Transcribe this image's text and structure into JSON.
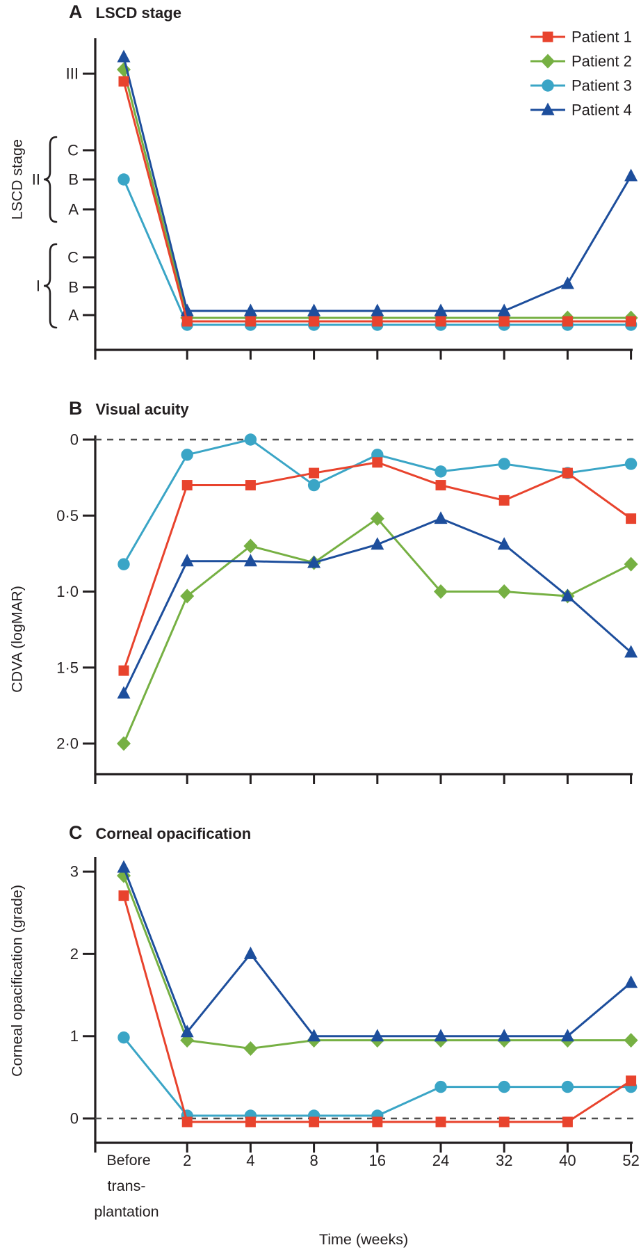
{
  "colors": {
    "axis": "#231f20",
    "text": "#231f20",
    "dashed_line": "#4d4d4d",
    "background": "#ffffff",
    "patient1": "#e8432d",
    "patient2": "#76b043",
    "patient3": "#3aa5c6",
    "patient4": "#1d4e9c"
  },
  "legend": {
    "items": [
      {
        "label": "Patient 1",
        "marker": "square",
        "color": "#e8432d"
      },
      {
        "label": "Patient 2",
        "marker": "diamond",
        "color": "#76b043"
      },
      {
        "label": "Patient 3",
        "marker": "circle",
        "color": "#3aa5c6"
      },
      {
        "label": "Patient 4",
        "marker": "triangle",
        "color": "#1d4e9c"
      }
    ]
  },
  "x_axis": {
    "tick_labels": [
      "2",
      "4",
      "8",
      "16",
      "24",
      "32",
      "40",
      "52"
    ],
    "first_category_lines": [
      "Before",
      "trans-",
      "plantation"
    ],
    "title": "Time (weeks)"
  },
  "chart_data": [
    {
      "type": "line",
      "panel_letter": "A",
      "title": "LSCD stage",
      "ylabel": "LSCD stage",
      "categories": [
        "Before transplantation",
        "2",
        "4",
        "8",
        "16",
        "24",
        "32",
        "40",
        "52"
      ],
      "y_axis": {
        "kind": "ordinal_stages",
        "ticks": [
          {
            "stage": "III",
            "label": "III"
          },
          {
            "stage": "IIC",
            "label": "C"
          },
          {
            "stage": "IIB",
            "label": "B"
          },
          {
            "stage": "IIA",
            "label": "A"
          },
          {
            "stage": "IC",
            "label": "C"
          },
          {
            "stage": "IB",
            "label": "B"
          },
          {
            "stage": "IA",
            "label": "A"
          }
        ],
        "group_braces": [
          {
            "label": "II",
            "stages": [
              "IIC",
              "IIB",
              "IIA"
            ]
          },
          {
            "label": "I",
            "stages": [
              "IC",
              "IB",
              "IA"
            ]
          }
        ]
      },
      "series": [
        {
          "name": "Patient 1",
          "values": [
            "III",
            "IA",
            "IA",
            "IA",
            "IA",
            "IA",
            "IA",
            "IA",
            "IA"
          ]
        },
        {
          "name": "Patient 2",
          "values": [
            "III",
            "IA",
            "IA",
            "IA",
            "IA",
            "IA",
            "IA",
            "IA",
            "IA"
          ]
        },
        {
          "name": "Patient 3",
          "values": [
            "IIB",
            "IA",
            "IA",
            "IA",
            "IA",
            "IA",
            "IA",
            "IA",
            "IA"
          ]
        },
        {
          "name": "Patient 4",
          "values": [
            "III",
            "IA",
            "IA",
            "IA",
            "IA",
            "IA",
            "IA",
            "IB",
            "IIB"
          ]
        }
      ]
    },
    {
      "type": "line",
      "panel_letter": "B",
      "title": "Visual acuity",
      "ylabel": "CDVA (logMAR)",
      "categories": [
        "Before transplantation",
        "2",
        "4",
        "8",
        "16",
        "24",
        "32",
        "40",
        "52"
      ],
      "y_ticks": [
        {
          "value": 0,
          "label": "0"
        },
        {
          "value": 0.5,
          "label": "0·5"
        },
        {
          "value": 1,
          "label": "1·0"
        },
        {
          "value": 1.5,
          "label": "1·5"
        },
        {
          "value": 2,
          "label": "2·0"
        }
      ],
      "ylim": [
        2.2,
        0
      ],
      "dashed_reference_value": 0,
      "series": [
        {
          "name": "Patient 1",
          "values": [
            1.52,
            0.3,
            0.3,
            0.22,
            0.15,
            0.3,
            0.4,
            0.22,
            0.52
          ]
        },
        {
          "name": "Patient 2",
          "values": [
            2.0,
            1.03,
            0.7,
            0.81,
            0.52,
            1.0,
            1.0,
            1.03,
            0.82
          ]
        },
        {
          "name": "Patient 3",
          "values": [
            0.82,
            0.1,
            0.0,
            0.3,
            0.1,
            0.21,
            0.16,
            0.22,
            0.16
          ]
        },
        {
          "name": "Patient 4",
          "values": [
            1.67,
            0.8,
            0.8,
            0.81,
            0.69,
            0.52,
            0.69,
            1.03,
            1.4
          ]
        }
      ]
    },
    {
      "type": "line",
      "panel_letter": "C",
      "title": "Corneal opacification",
      "ylabel": "Corneal opacification (grade)",
      "categories": [
        "Before transplantation",
        "2",
        "4",
        "8",
        "16",
        "24",
        "32",
        "40",
        "52"
      ],
      "y_ticks": [
        {
          "value": 3,
          "label": "3"
        },
        {
          "value": 2,
          "label": "2"
        },
        {
          "value": 1,
          "label": "1"
        },
        {
          "value": 0,
          "label": "0"
        }
      ],
      "ylim": [
        -0.2,
        3.2
      ],
      "dashed_reference_value": 0,
      "series": [
        {
          "name": "Patient 1",
          "values": [
            2.75,
            0,
            0,
            0,
            0,
            0,
            0,
            0,
            0.5
          ]
        },
        {
          "name": "Patient 2",
          "values": [
            2.95,
            0.95,
            0.85,
            0.95,
            0.95,
            0.95,
            0.95,
            0.95,
            0.95
          ]
        },
        {
          "name": "Patient 3",
          "values": [
            0.95,
            0,
            0,
            0,
            0,
            0.35,
            0.35,
            0.35,
            0.35
          ]
        },
        {
          "name": "Patient 4",
          "values": [
            3.05,
            1.05,
            2.0,
            1.0,
            1.0,
            1.0,
            1.0,
            1.0,
            1.65
          ]
        }
      ]
    }
  ]
}
